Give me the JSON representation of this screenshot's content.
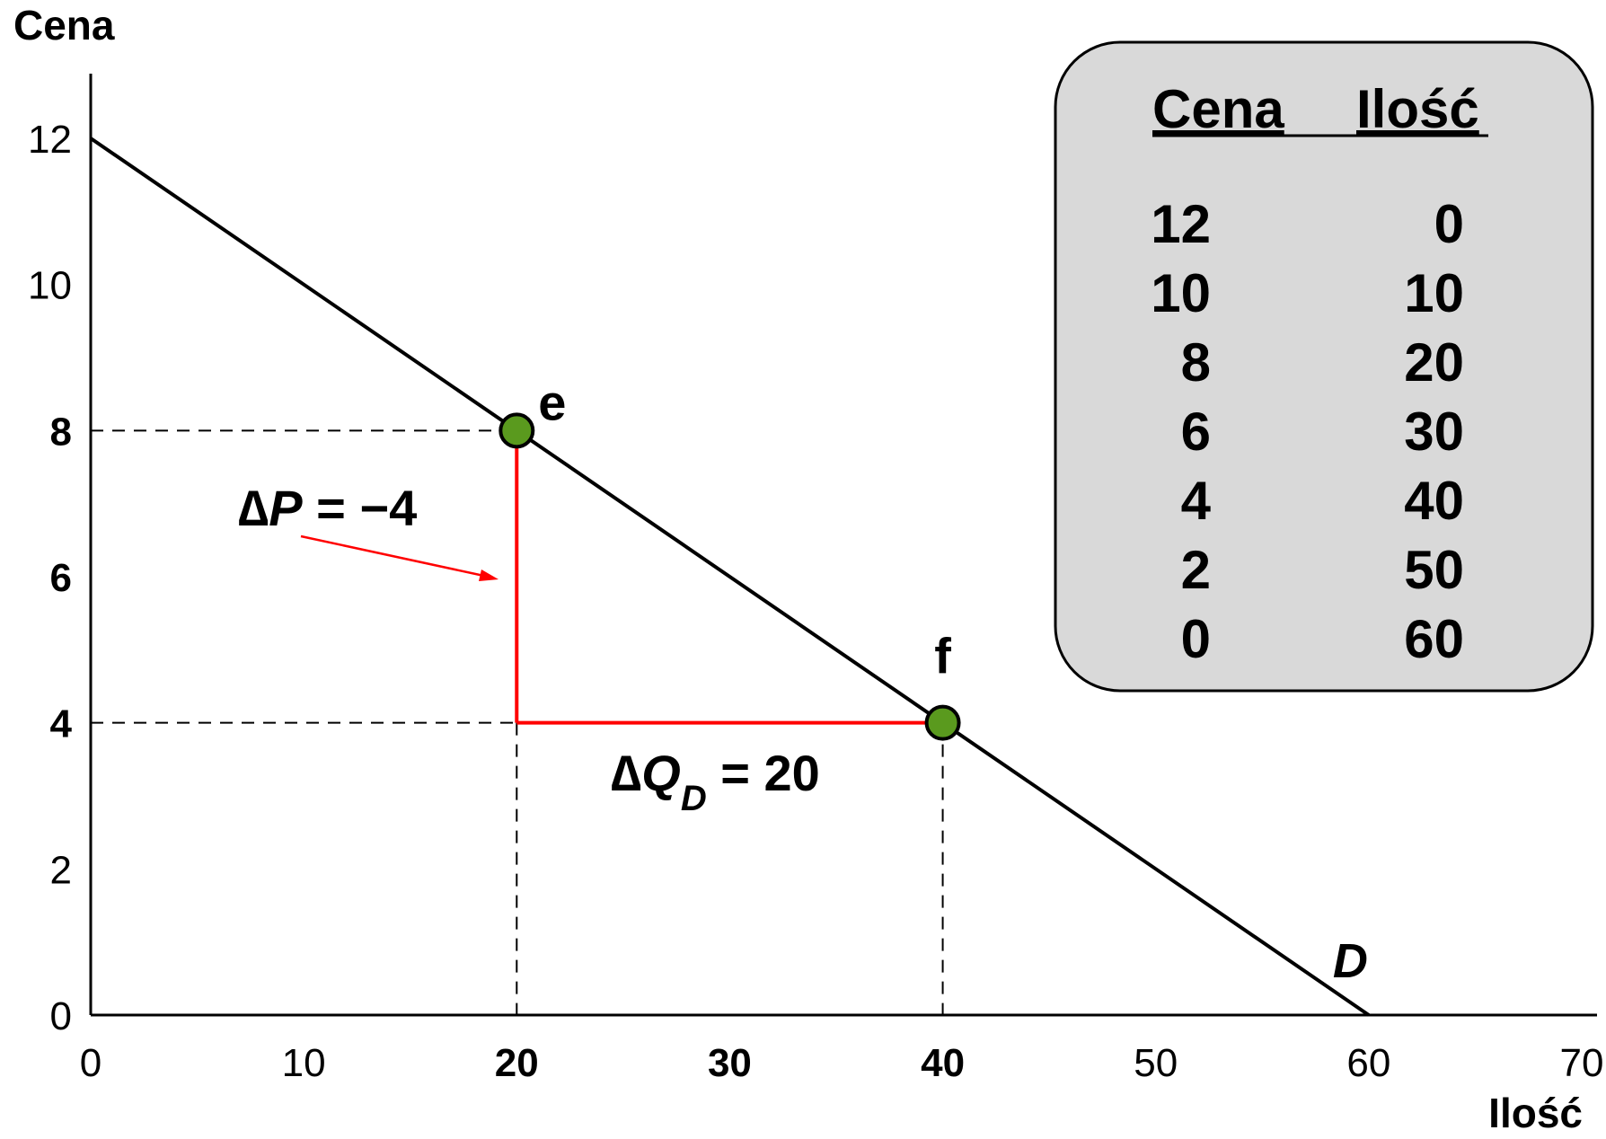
{
  "chart_data": {
    "type": "line",
    "xlabel": "Ilość",
    "ylabel": "Cena",
    "xlim": [
      0,
      70
    ],
    "ylim": [
      0,
      12
    ],
    "x_ticks": [
      {
        "value": 0,
        "label": "0",
        "bold": false
      },
      {
        "value": 10,
        "label": "10",
        "bold": false
      },
      {
        "value": 20,
        "label": "20",
        "bold": true
      },
      {
        "value": 30,
        "label": "30",
        "bold": true
      },
      {
        "value": 40,
        "label": "40",
        "bold": true
      },
      {
        "value": 50,
        "label": "50",
        "bold": false
      },
      {
        "value": 60,
        "label": "60",
        "bold": false
      },
      {
        "value": 70,
        "label": "70",
        "bold": false
      }
    ],
    "y_ticks": [
      {
        "value": 0,
        "label": "0",
        "bold": false
      },
      {
        "value": 2,
        "label": "2",
        "bold": false
      },
      {
        "value": 4,
        "label": "4",
        "bold": true
      },
      {
        "value": 6,
        "label": "6",
        "bold": true
      },
      {
        "value": 8,
        "label": "8",
        "bold": true
      },
      {
        "value": 10,
        "label": "10",
        "bold": false
      },
      {
        "value": 12,
        "label": "12",
        "bold": false
      }
    ],
    "demand_curve": {
      "label": "D",
      "color": "#000000",
      "points": [
        {
          "x": 0,
          "y": 12
        },
        {
          "x": 60,
          "y": 0
        }
      ]
    },
    "points": [
      {
        "label": "e",
        "x": 20,
        "y": 8,
        "color": "#5a9a1e"
      },
      {
        "label": "f",
        "x": 40,
        "y": 4,
        "color": "#5a9a1e"
      }
    ],
    "delta_color": "#ff0000",
    "annotations": {
      "delta_p": {
        "symbol": "∆",
        "var": "P",
        "text": " = −4"
      },
      "delta_q": {
        "symbol": "∆",
        "var": "Q",
        "sub": "D",
        "text": " = 20"
      }
    },
    "table": {
      "headers": [
        "Cena",
        "Ilość"
      ],
      "rows": [
        [
          "12",
          "0"
        ],
        [
          "10",
          "10"
        ],
        [
          "8",
          "20"
        ],
        [
          "6",
          "30"
        ],
        [
          "4",
          "40"
        ],
        [
          "2",
          "50"
        ],
        [
          "0",
          "60"
        ]
      ],
      "background": "#d9d9d9"
    }
  }
}
